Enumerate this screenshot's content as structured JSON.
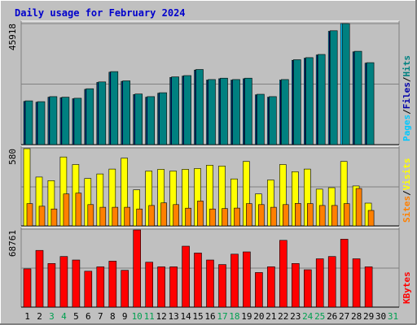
{
  "chart_data": {
    "type": "bar",
    "title": "Daily usage for February 2024",
    "days": [
      "1",
      "2",
      "3",
      "4",
      "5",
      "6",
      "7",
      "8",
      "9",
      "10",
      "11",
      "12",
      "13",
      "14",
      "15",
      "16",
      "17",
      "18",
      "19",
      "20",
      "21",
      "22",
      "23",
      "24",
      "25",
      "26",
      "27",
      "28",
      "29",
      "30",
      "31"
    ],
    "weekend_days": [
      "3",
      "4",
      "10",
      "11",
      "17",
      "18",
      "24",
      "25",
      "31"
    ],
    "colors": {
      "background": "#c0c0c0",
      "title": "#0000cc",
      "pages": "#00c8ff",
      "files": "#0000aa",
      "hits": "#008080",
      "visits": "#ffff00",
      "sites": "#ff8000",
      "kbytes": "#ff0000",
      "weekday_label": "#000000",
      "weekend_label": "#00a050",
      "separator": "#000000"
    },
    "panels": [
      {
        "id": "hits",
        "ymax_label": "45918",
        "ymax": 45918,
        "right_labels": [
          {
            "text": "Pages",
            "color": "#00c8ff"
          },
          {
            "text": "/",
            "color": "#000000"
          },
          {
            "text": "Files",
            "color": "#0000aa"
          },
          {
            "text": "/",
            "color": "#000000"
          },
          {
            "text": "Hits",
            "color": "#008080"
          }
        ],
        "series": [
          {
            "color": "#00c8ff",
            "values": [
              16400,
              16100,
              18000,
              17800,
              17400,
              21000,
              23600,
              27500,
              24000,
              19000,
              18000,
              19500,
              25500,
              26000,
              28300,
              24500,
              25000,
              24500,
              25000,
              18900,
              18000,
              24500,
              32000,
              32800,
              34000,
              43000,
              45918,
              35200,
              30900,
              null,
              null
            ]
          },
          {
            "color": "#0000aa",
            "values": [
              16300,
              16000,
              17900,
              17700,
              17300,
              20800,
              23400,
              27300,
              23800,
              18800,
              17800,
              19300,
              25300,
              25800,
              28100,
              24300,
              24800,
              24300,
              24800,
              18700,
              17800,
              24300,
              31800,
              32600,
              33800,
              42800,
              null,
              35000,
              30700,
              null,
              null
            ]
          },
          {
            "color": "#008080",
            "values": [
              16600,
              16300,
              18200,
              18000,
              17600,
              21200,
              23800,
              27700,
              24200,
              19200,
              18200,
              19700,
              25700,
              26200,
              28500,
              24700,
              25200,
              24700,
              25200,
              19100,
              18200,
              24700,
              32200,
              33000,
              34200,
              43200,
              45918,
              35400,
              31100,
              null,
              null
            ]
          }
        ]
      },
      {
        "id": "visits",
        "ymax_label": "580",
        "ymax": 580,
        "right_labels": [
          {
            "text": "Sites",
            "color": "#ff8000"
          },
          {
            "text": "/",
            "color": "#000000"
          },
          {
            "text": "Visits",
            "color": "#ffff00"
          }
        ],
        "series": [
          {
            "color": "#ffff00",
            "values": [
              580,
              367,
              340,
              518,
              461,
              356,
              390,
              427,
              509,
              271,
              412,
              425,
              412,
              425,
              431,
              456,
              450,
              353,
              484,
              240,
              345,
              461,
              407,
              427,
              276,
              287,
              484,
              300,
              171,
              null,
              null
            ]
          },
          {
            "color": "#ff8000",
            "values": [
              167,
              148,
              127,
              240,
              246,
              160,
              140,
              140,
              140,
              127,
              153,
              173,
              160,
              133,
              187,
              127,
              130,
              134,
              167,
              160,
              140,
              160,
              169,
              167,
              153,
              153,
              167,
              281,
              116,
              null,
              null
            ]
          }
        ]
      },
      {
        "id": "kbytes",
        "ymax_label": "68761",
        "ymax": 68761,
        "right_labels": [
          {
            "text": "KBytes",
            "color": "#ff0000"
          }
        ],
        "series": [
          {
            "color": "#ff0000",
            "values": [
              34100,
              50500,
              38900,
              45100,
              42000,
              32000,
              35900,
              41000,
              32800,
              68761,
              40000,
              35900,
              35900,
              54300,
              48200,
              42000,
              37900,
              47200,
              49200,
              30800,
              36000,
              59500,
              38900,
              33300,
              43100,
              45100,
              60500,
              43100,
              35900,
              null,
              null
            ]
          }
        ]
      }
    ]
  }
}
